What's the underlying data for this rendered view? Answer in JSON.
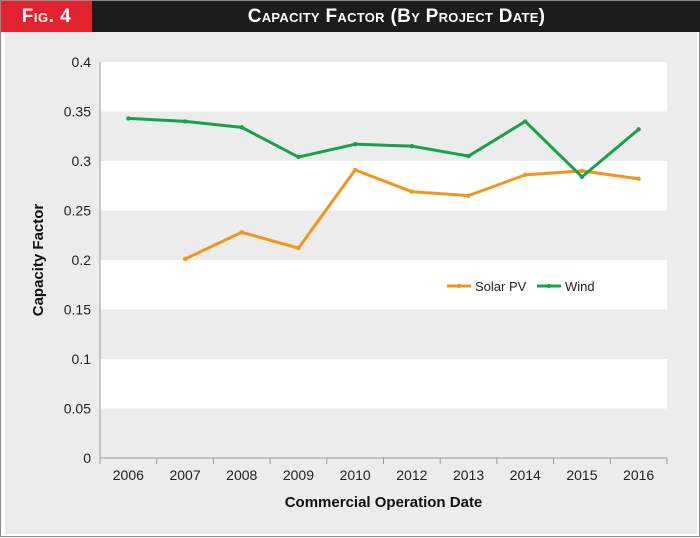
{
  "header": {
    "fig_label": "Fig. 4",
    "title": "Capacity Factor (By Project Date)"
  },
  "colors": {
    "fig_label_bg": "#e2222e",
    "header_bg": "#1c1c1c",
    "panel_bg": "#ececec",
    "band": "#ffffff",
    "solar": "#f0961e",
    "wind": "#18a14a"
  },
  "chart_data": {
    "type": "line",
    "title": "Capacity Factor (By Project Date)",
    "xlabel": "Commercial Operation Date",
    "ylabel": "Capacity Factor",
    "categories": [
      "2006",
      "2007",
      "2008",
      "2009",
      "2010",
      "2012",
      "2013",
      "2014",
      "2015",
      "2016"
    ],
    "ylim": [
      0,
      0.4
    ],
    "yticks": [
      0,
      0.05,
      0.1,
      0.15,
      0.2,
      0.25,
      0.3,
      0.35,
      0.4
    ],
    "ytick_labels": [
      "0",
      "0.05",
      "0.1",
      "0.15",
      "0.2",
      "0.25",
      "0.3",
      "0.35",
      "0.4"
    ],
    "legend_position": "center-right",
    "series": [
      {
        "name": "Solar PV",
        "color": "#f0961e",
        "values": [
          null,
          0.201,
          0.228,
          0.212,
          0.291,
          0.269,
          0.265,
          0.286,
          0.29,
          0.282
        ]
      },
      {
        "name": "Wind",
        "color": "#18a14a",
        "values": [
          0.343,
          0.34,
          0.334,
          0.304,
          0.317,
          0.315,
          0.305,
          0.34,
          0.284,
          0.332
        ]
      }
    ]
  }
}
